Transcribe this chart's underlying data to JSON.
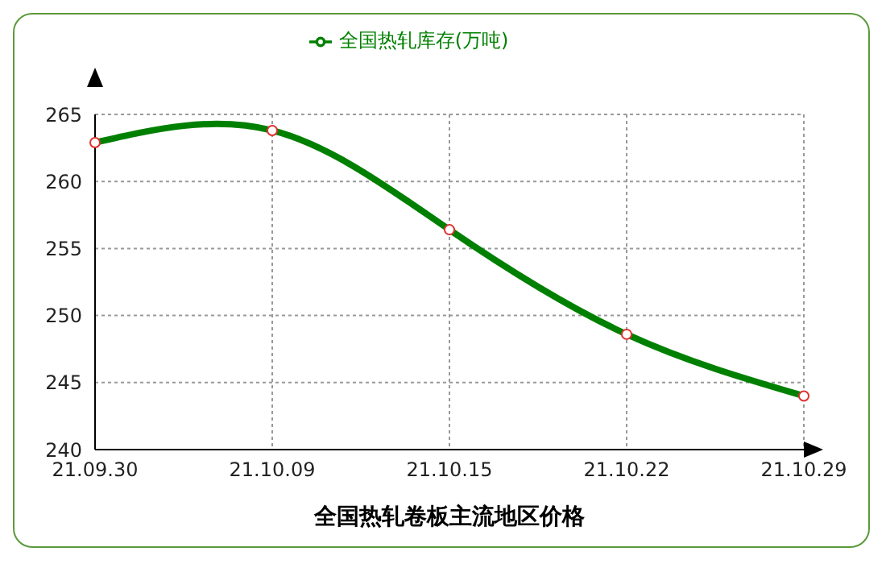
{
  "chart_data": {
    "type": "line",
    "xlabel": "全国热轧卷板主流地区价格",
    "categories": [
      "21.09.30",
      "21.10.09",
      "21.10.15",
      "21.10.22",
      "21.10.29"
    ],
    "series": [
      {
        "name": "全国热轧库存(万吨)",
        "color": "#008000",
        "values": [
          262.9,
          263.8,
          256.4,
          248.6,
          244.0
        ]
      }
    ],
    "ylim": [
      240,
      265
    ],
    "yticks": [
      240,
      245,
      250,
      255,
      260,
      265
    ],
    "grid": true,
    "legend": "top",
    "marker": "circle",
    "line_style": "solid"
  }
}
